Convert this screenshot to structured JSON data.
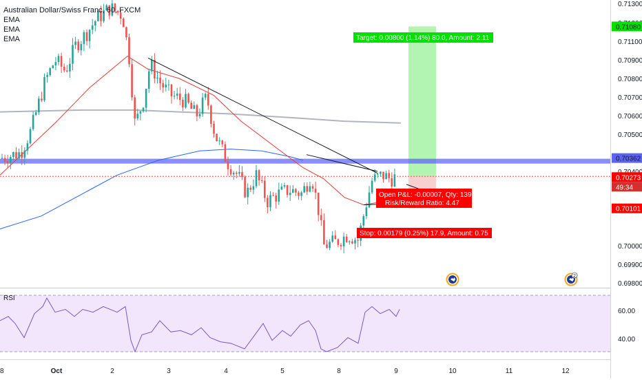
{
  "legend": {
    "symbol": "Australian Dollar/Swiss Franc, 60, FXCM",
    "ema1": "EMA",
    "ema2": "EMA",
    "ema3": "EMA"
  },
  "rsi_label": "RSI",
  "position": {
    "target_label": "Target: 0.00800 (1.14%) 80.0, Amount: 2.11",
    "stop_label": "Stop: 0.00179 (0.25%) 17.9, Amount: 0.75",
    "open_pl_label": "Open P&L: -0.00007, Qty: 139",
    "risk_reward_label": "Risk/Reward Ratio: 4.47",
    "target_price": 0.7108,
    "entry_price": 0.70273,
    "stop_price": 0.70101
  },
  "price_badges": {
    "target": "0.71080",
    "zone": "0.70362",
    "current": "0.70273",
    "countdown": "49:34",
    "stop": "0.70101"
  },
  "price_axis": {
    "ticks": [
      "0.71300",
      "0.71200",
      "0.71100",
      "0.70900",
      "0.70800",
      "0.70700",
      "0.70600",
      "0.70500",
      "0.70400",
      "0.70000",
      "0.69900",
      "0.69800"
    ],
    "range": [
      0.6978,
      0.7132
    ]
  },
  "rsi_axis": {
    "ticks": [
      "60.00",
      "40.00"
    ],
    "upper": 70,
    "lower": 30,
    "range": [
      25,
      75
    ]
  },
  "time_axis": {
    "labels": [
      "8",
      "Oct",
      "2",
      "3",
      "4",
      "5",
      "8",
      "9",
      "10",
      "11",
      "12"
    ]
  },
  "zone": {
    "high": 0.70368,
    "low": 0.70342
  },
  "colors": {
    "up": "#26a69a",
    "down": "#ef5350",
    "ema_fast": "#e53935",
    "ema_mid": "#2962ff",
    "ema_slow": "#b2b5be",
    "zone": "#5b63f5",
    "target_fill": "#a5f3a5",
    "stop_fill": "#f8c8c8",
    "target_badge": "#00e000",
    "stop_badge": "#ff0000",
    "rsi_line": "#7e57c2"
  },
  "chart_data": {
    "type": "candlestick",
    "title": "Australian Dollar/Swiss Franc, 60, FXCM",
    "x_labels": [
      "8",
      "Oct",
      "2",
      "3",
      "4",
      "5",
      "8",
      "9",
      "10",
      "11",
      "12"
    ],
    "ylim": [
      0.6978,
      0.7132
    ],
    "price_path": [
      [
        0,
        0.7037
      ],
      [
        30,
        0.704
      ],
      [
        45,
        0.7052
      ],
      [
        65,
        0.7078
      ],
      [
        80,
        0.709
      ],
      [
        95,
        0.7084
      ],
      [
        110,
        0.7098
      ],
      [
        125,
        0.7104
      ],
      [
        140,
        0.7112
      ],
      [
        160,
        0.7118
      ],
      [
        178,
        0.7114
      ],
      [
        188,
        0.709
      ],
      [
        196,
        0.7055
      ],
      [
        208,
        0.7068
      ],
      [
        218,
        0.7088
      ],
      [
        232,
        0.7078
      ],
      [
        248,
        0.7071
      ],
      [
        268,
        0.7068
      ],
      [
        285,
        0.706
      ],
      [
        300,
        0.707
      ],
      [
        312,
        0.705
      ],
      [
        330,
        0.7035
      ],
      [
        345,
        0.7028
      ],
      [
        358,
        0.7018
      ],
      [
        372,
        0.7028
      ],
      [
        388,
        0.7014
      ],
      [
        405,
        0.7018
      ],
      [
        420,
        0.702
      ],
      [
        438,
        0.7018
      ],
      [
        452,
        0.7028
      ],
      [
        462,
        0.701
      ],
      [
        470,
        0.699
      ],
      [
        488,
        0.6992
      ],
      [
        505,
        0.6996
      ],
      [
        520,
        0.6993
      ],
      [
        530,
        0.701
      ],
      [
        540,
        0.7025
      ],
      [
        555,
        0.7028
      ],
      [
        567,
        0.7026
      ],
      [
        577,
        0.7027
      ]
    ],
    "ema_fast": [
      [
        0,
        0.7028
      ],
      [
        80,
        0.7056
      ],
      [
        130,
        0.7075
      ],
      [
        185,
        0.7092
      ],
      [
        215,
        0.7085
      ],
      [
        260,
        0.708
      ],
      [
        310,
        0.7071
      ],
      [
        350,
        0.7057
      ],
      [
        400,
        0.7043
      ],
      [
        440,
        0.7032
      ],
      [
        470,
        0.7026
      ],
      [
        500,
        0.7016
      ],
      [
        528,
        0.7012
      ],
      [
        560,
        0.7014
      ],
      [
        582,
        0.7016
      ]
    ],
    "ema_mid": [
      [
        0,
        0.6999
      ],
      [
        60,
        0.7006
      ],
      [
        120,
        0.7018
      ],
      [
        170,
        0.7028
      ],
      [
        230,
        0.7036
      ],
      [
        290,
        0.7041
      ],
      [
        335,
        0.7042
      ],
      [
        380,
        0.7041
      ],
      [
        420,
        0.7038
      ],
      [
        440,
        0.7036
      ]
    ],
    "ema_slow": [
      [
        0,
        0.7062
      ],
      [
        120,
        0.7063
      ],
      [
        195,
        0.7063
      ],
      [
        260,
        0.7062
      ],
      [
        330,
        0.7061
      ],
      [
        420,
        0.7059
      ],
      [
        500,
        0.7057
      ],
      [
        582,
        0.7056
      ]
    ],
    "trendlines": [
      [
        [
          215,
          0.7091
        ],
        [
          548,
          0.7029
        ]
      ],
      [
        [
          445,
          0.7039
        ],
        [
          548,
          0.703
        ]
      ],
      [
        [
          528,
          0.7012
        ],
        [
          595,
          0.7013
        ]
      ],
      [
        [
          590,
          0.7023
        ],
        [
          620,
          0.7019
        ]
      ]
    ],
    "rsi": [
      [
        0,
        52
      ],
      [
        12,
        55
      ],
      [
        22,
        50
      ],
      [
        35,
        40
      ],
      [
        50,
        57
      ],
      [
        62,
        62
      ],
      [
        68,
        68
      ],
      [
        80,
        58
      ],
      [
        95,
        60
      ],
      [
        108,
        55
      ],
      [
        120,
        60
      ],
      [
        135,
        58
      ],
      [
        150,
        62
      ],
      [
        170,
        58
      ],
      [
        182,
        62
      ],
      [
        190,
        38
      ],
      [
        196,
        30
      ],
      [
        206,
        42
      ],
      [
        220,
        44
      ],
      [
        232,
        52
      ],
      [
        248,
        44
      ],
      [
        262,
        45
      ],
      [
        278,
        42
      ],
      [
        292,
        47
      ],
      [
        305,
        40
      ],
      [
        320,
        37
      ],
      [
        335,
        36
      ],
      [
        355,
        32
      ],
      [
        370,
        42
      ],
      [
        382,
        50
      ],
      [
        395,
        38
      ],
      [
        410,
        45
      ],
      [
        422,
        41
      ],
      [
        436,
        49
      ],
      [
        448,
        52
      ],
      [
        458,
        45
      ],
      [
        466,
        32
      ],
      [
        474,
        30
      ],
      [
        490,
        33
      ],
      [
        505,
        40
      ],
      [
        520,
        36
      ],
      [
        530,
        58
      ],
      [
        540,
        62
      ],
      [
        552,
        57
      ],
      [
        565,
        60
      ],
      [
        575,
        55
      ],
      [
        580,
        60
      ]
    ]
  }
}
